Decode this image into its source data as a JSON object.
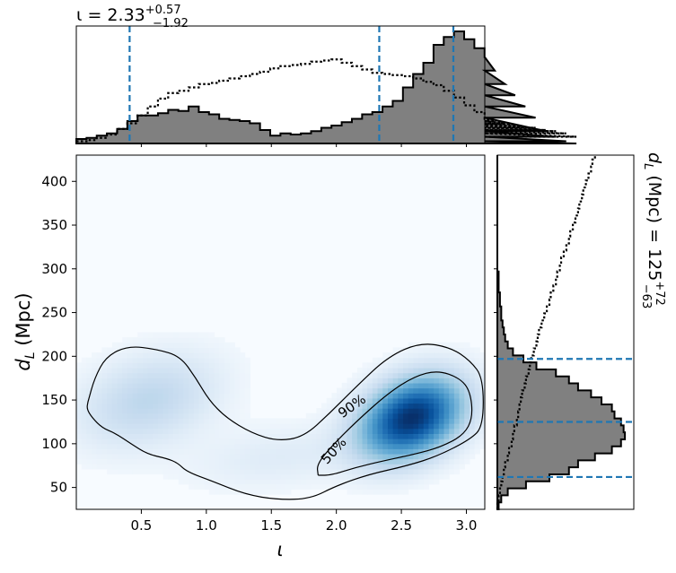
{
  "chart_data": [
    {
      "panel": "top-marginal",
      "type": "histogram",
      "title": {
        "var": "ι",
        "eq": " = 2.33",
        "sup": "+0.57",
        "sub": "−1.92"
      },
      "xlim": [
        0.0,
        3.1416
      ],
      "bin_width": 0.0785,
      "posterior_heights": [
        0.04,
        0.05,
        0.07,
        0.09,
        0.13,
        0.2,
        0.25,
        0.25,
        0.27,
        0.3,
        0.29,
        0.33,
        0.28,
        0.26,
        0.22,
        0.21,
        0.2,
        0.18,
        0.12,
        0.07,
        0.09,
        0.08,
        0.09,
        0.11,
        0.14,
        0.16,
        0.19,
        0.22,
        0.26,
        0.28,
        0.33,
        0.38,
        0.5,
        0.62,
        0.72,
        0.88,
        0.95,
        1.0,
        0.93,
        0.85,
        0.77,
        0.65,
        0.53,
        0.43,
        0.33,
        0.23,
        0.11,
        0.06,
        0.02,
        0.0
      ],
      "prior_heights": [
        0.02,
        0.03,
        0.05,
        0.08,
        0.13,
        0.18,
        0.25,
        0.33,
        0.4,
        0.45,
        0.47,
        0.5,
        0.53,
        0.54,
        0.56,
        0.58,
        0.6,
        0.62,
        0.64,
        0.67,
        0.69,
        0.7,
        0.71,
        0.73,
        0.74,
        0.75,
        0.72,
        0.69,
        0.66,
        0.63,
        0.62,
        0.61,
        0.6,
        0.58,
        0.55,
        0.52,
        0.47,
        0.41,
        0.34,
        0.28,
        0.22,
        0.2,
        0.18,
        0.17,
        0.15,
        0.14,
        0.12,
        0.11,
        0.09,
        0.06
      ],
      "lines": [
        0.41,
        2.33,
        2.9
      ]
    },
    {
      "panel": "right-marginal",
      "type": "histogram-horizontal",
      "label": {
        "sym": "d",
        "sub1": "L",
        "rest": " (Mpc) = 125",
        "sup": "+72",
        "sub": "−63"
      },
      "ylim": [
        25,
        430
      ],
      "bin_width": 8,
      "posterior_heights": [
        0.01,
        0.03,
        0.08,
        0.22,
        0.4,
        0.55,
        0.62,
        0.75,
        0.88,
        0.95,
        0.98,
        0.97,
        0.95,
        0.9,
        0.88,
        0.8,
        0.72,
        0.62,
        0.55,
        0.45,
        0.3,
        0.2,
        0.12,
        0.08,
        0.06,
        0.05,
        0.04,
        0.03,
        0.03,
        0.02,
        0.02,
        0.01,
        0.01,
        0.01,
        0.0,
        0.0,
        0.0,
        0.0,
        0.0,
        0.0,
        0.0,
        0.0,
        0.0,
        0.0,
        0.0,
        0.0,
        0.0,
        0.0,
        0.0,
        0.0,
        0.0
      ],
      "prior_heights": [
        0.0,
        0.01,
        0.02,
        0.03,
        0.04,
        0.05,
        0.06,
        0.08,
        0.09,
        0.11,
        0.12,
        0.13,
        0.15,
        0.16,
        0.17,
        0.18,
        0.19,
        0.21,
        0.22,
        0.24,
        0.25,
        0.26,
        0.28,
        0.3,
        0.31,
        0.32,
        0.34,
        0.36,
        0.38,
        0.4,
        0.41,
        0.43,
        0.45,
        0.46,
        0.48,
        0.49,
        0.51,
        0.53,
        0.55,
        0.56,
        0.58,
        0.6,
        0.62,
        0.63,
        0.65,
        0.66,
        0.68,
        0.7,
        0.72,
        0.73,
        0.75
      ],
      "lines": [
        62,
        125,
        197
      ]
    },
    {
      "panel": "main",
      "type": "heatmap",
      "xlabel": "ι",
      "ylabel": {
        "sym": "d",
        "sub1": "L",
        "rest": " (Mpc)"
      },
      "xlim": [
        0.0,
        3.1416
      ],
      "ylim": [
        25,
        430
      ],
      "xticks": [
        0.5,
        1.0,
        1.5,
        2.0,
        2.5,
        3.0
      ],
      "xtick_labels": [
        "0.5",
        "1.0",
        "1.5",
        "2.0",
        "2.5",
        "3.0"
      ],
      "yticks": [
        50,
        100,
        150,
        200,
        250,
        300,
        350,
        400
      ],
      "ytick_labels": [
        "50",
        "100",
        "150",
        "200",
        "250",
        "300",
        "350",
        "400"
      ],
      "density_peaks": [
        {
          "x": 2.58,
          "y": 130,
          "sx": 0.25,
          "sy": 30,
          "w": 1.0
        },
        {
          "x": 0.55,
          "y": 150,
          "sx": 0.35,
          "sy": 35,
          "w": 0.22
        },
        {
          "x": 1.55,
          "y": 85,
          "sx": 0.45,
          "sy": 25,
          "w": 0.08
        }
      ],
      "contours": [
        {
          "label": "90%",
          "label_pos": [
            2.12,
            143
          ],
          "label_angle": -35,
          "path": [
            [
              0.09,
              148
            ],
            [
              0.14,
              175
            ],
            [
              0.23,
              200
            ],
            [
              0.4,
              212
            ],
            [
              0.62,
              208
            ],
            [
              0.8,
              200
            ],
            [
              0.92,
              175
            ],
            [
              1.02,
              150
            ],
            [
              1.15,
              130
            ],
            [
              1.35,
              112
            ],
            [
              1.55,
              103
            ],
            [
              1.75,
              108
            ],
            [
              1.95,
              135
            ],
            [
              2.15,
              165
            ],
            [
              2.4,
              200
            ],
            [
              2.65,
              216
            ],
            [
              2.88,
              210
            ],
            [
              3.03,
              195
            ],
            [
              3.13,
              175
            ],
            [
              3.13,
              120
            ],
            [
              3.03,
              105
            ],
            [
              2.78,
              86
            ],
            [
              2.55,
              75
            ],
            [
              2.25,
              65
            ],
            [
              2.0,
              52
            ],
            [
              1.8,
              37
            ],
            [
              1.55,
              36
            ],
            [
              1.3,
              42
            ],
            [
              1.05,
              57
            ],
            [
              0.85,
              68
            ],
            [
              0.78,
              78
            ],
            [
              0.7,
              83
            ],
            [
              0.55,
              88
            ],
            [
              0.42,
              100
            ],
            [
              0.3,
              112
            ],
            [
              0.2,
              118
            ],
            [
              0.12,
              130
            ],
            [
              0.08,
              140
            ],
            [
              0.09,
              148
            ]
          ]
        },
        {
          "label": "50%",
          "label_pos": [
            1.98,
            92
          ],
          "label_angle": -48,
          "path": [
            [
              1.86,
              64
            ],
            [
              1.85,
              76
            ],
            [
              1.95,
              95
            ],
            [
              2.15,
              125
            ],
            [
              2.4,
              158
            ],
            [
              2.6,
              177
            ],
            [
              2.78,
              184
            ],
            [
              2.95,
              175
            ],
            [
              3.03,
              160
            ],
            [
              3.05,
              130
            ],
            [
              2.98,
              110
            ],
            [
              2.8,
              96
            ],
            [
              2.6,
              88
            ],
            [
              2.35,
              80
            ],
            [
              2.15,
              73
            ],
            [
              1.96,
              64
            ],
            [
              1.86,
              64
            ]
          ]
        }
      ]
    }
  ]
}
